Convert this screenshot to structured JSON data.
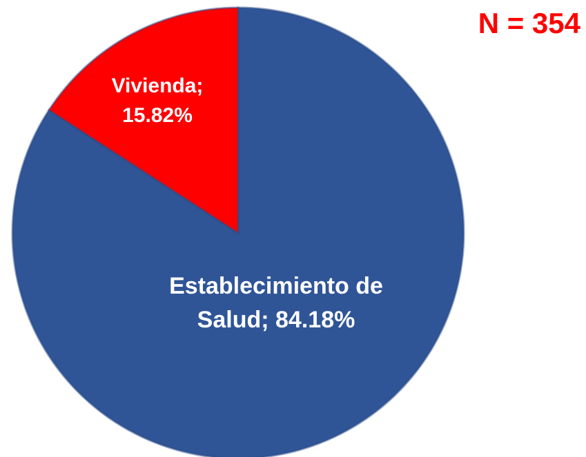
{
  "chart_data": {
    "type": "pie",
    "title": "N = 354",
    "categories": [
      "Establecimiento de Salud;",
      "Vivienda;"
    ],
    "values": [
      84.18,
      15.82
    ],
    "value_labels": [
      "84.18%",
      "15.82%"
    ],
    "colors": [
      "#2f5597",
      "#ff0000"
    ]
  }
}
